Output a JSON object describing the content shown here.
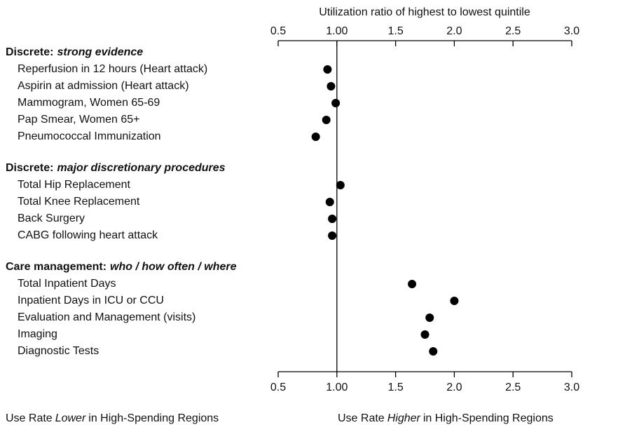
{
  "chart_data": {
    "type": "dot",
    "xlabel": "Utilization ratio of highest to lowest quintile",
    "xlim": [
      0.5,
      3.0
    ],
    "xticks": [
      0.5,
      {
        "value": 1.0,
        "label": "1.00"
      },
      1.5,
      {
        "value": 2.0,
        "label": "2.0"
      },
      2.5,
      {
        "value": 3.0,
        "label": "3.0"
      }
    ],
    "color": "#000000",
    "groups": [
      {
        "label": "Discrete:",
        "sublabel": "strong evidence",
        "categories": [
          "Reperfusion in 12 hours (Heart attack)",
          "Aspirin at admission (Heart attack)",
          "Mammogram, Women 65-69",
          "Pap Smear, Women 65+",
          "Pneumococcal Immunization"
        ],
        "values": [
          0.92,
          0.95,
          0.99,
          0.91,
          0.82
        ]
      },
      {
        "label": "Discrete:",
        "sublabel": "major discretionary procedures",
        "categories": [
          "Total Hip Replacement",
          "Total Knee Replacement",
          "Back Surgery",
          "CABG following heart attack"
        ],
        "values": [
          1.03,
          0.94,
          0.96,
          0.96
        ]
      },
      {
        "label": "Care management:",
        "sublabel": "who / how often / where",
        "categories": [
          "Total Inpatient Days",
          "Inpatient Days in ICU or CCU",
          "Evaluation and Management (visits)",
          "Imaging",
          "Diagnostic Tests"
        ],
        "values": [
          1.64,
          2.0,
          1.79,
          1.75,
          1.82
        ]
      }
    ],
    "notes": [
      [
        "Use Rate",
        "Lower",
        "in High-Spending Regions"
      ],
      [
        "Use Rate",
        "Higher",
        "in High-Spending Regions"
      ]
    ]
  }
}
